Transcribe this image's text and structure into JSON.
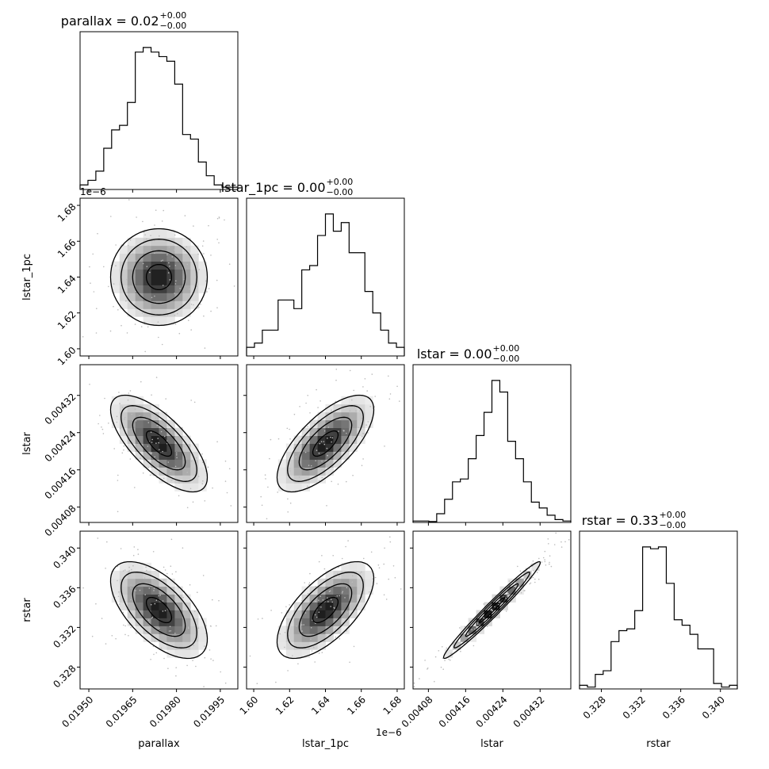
{
  "chart_data": {
    "type": "corner",
    "grid": false,
    "parameters": [
      "parallax",
      "lstar_1pc",
      "lstar",
      "rstar"
    ],
    "titles": [
      {
        "param": "parallax",
        "text": "parallax = 0.02",
        "plus": "+0.00",
        "minus": "−0.00"
      },
      {
        "param": "lstar_1pc",
        "text": "lstar_1pc = 0.00",
        "plus": "+0.00",
        "minus": "−0.00"
      },
      {
        "param": "lstar",
        "text": "lstar = 0.00",
        "plus": "+0.00",
        "minus": "−0.00"
      },
      {
        "param": "rstar",
        "text": "rstar = 0.33",
        "plus": "+0.00",
        "minus": "−0.00"
      }
    ],
    "axes": {
      "parallax": {
        "label": "parallax",
        "range": [
          0.01947,
          0.02001
        ],
        "ticks": [
          0.0195,
          0.01965,
          0.0198,
          0.01995
        ],
        "tick_labels": [
          "0.01950",
          "0.01965",
          "0.01980",
          "0.01995"
        ]
      },
      "lstar_1pc": {
        "label": "lstar_1pc",
        "range": [
          1.596,
          1.684
        ],
        "ticks": [
          1.6,
          1.62,
          1.64,
          1.66,
          1.68
        ],
        "tick_labels": [
          "1.60",
          "1.62",
          "1.64",
          "1.66",
          "1.68"
        ],
        "offset_text": "1e−6"
      },
      "lstar": {
        "label": "lstar",
        "range": [
          0.004047,
          0.004386
        ],
        "ticks": [
          0.00408,
          0.00416,
          0.00424,
          0.00432
        ],
        "tick_labels": [
          "0.00408",
          "0.00416",
          "0.00424",
          "0.00432"
        ]
      },
      "rstar": {
        "label": "rstar",
        "range": [
          0.3258,
          0.3417
        ],
        "ticks": [
          0.328,
          0.332,
          0.336,
          0.34
        ],
        "tick_labels": [
          "0.328",
          "0.332",
          "0.336",
          "0.340"
        ]
      }
    },
    "histograms": {
      "parallax": [
        1,
        2,
        4,
        9,
        13,
        14,
        19,
        30,
        31,
        30,
        29,
        28,
        23,
        12,
        11,
        6,
        3,
        1,
        0.5,
        0.5
      ],
      "lstar_1pc": [
        2,
        3,
        6,
        6,
        13,
        13,
        11,
        20,
        21,
        28,
        33,
        29,
        31,
        24,
        24,
        15,
        10,
        6,
        3,
        2
      ],
      "lstar": [
        0.5,
        0.5,
        0.3,
        3,
        8,
        14,
        15,
        22,
        30,
        38,
        49,
        45,
        28,
        22,
        14,
        7,
        5,
        2.5,
        1,
        0.5
      ],
      "rstar": [
        1,
        0.5,
        4,
        5,
        13,
        16,
        16.5,
        21.5,
        39,
        38.5,
        39,
        29,
        19,
        17.5,
        15,
        11,
        11,
        1.5,
        0.5,
        1
      ]
    },
    "correlations": {
      "lstar_1pc|parallax": 0.0,
      "lstar|parallax": -0.7,
      "lstar|lstar_1pc": 0.7,
      "rstar|parallax": -0.6,
      "rstar|lstar_1pc": 0.65,
      "rstar|lstar": 0.98
    }
  }
}
